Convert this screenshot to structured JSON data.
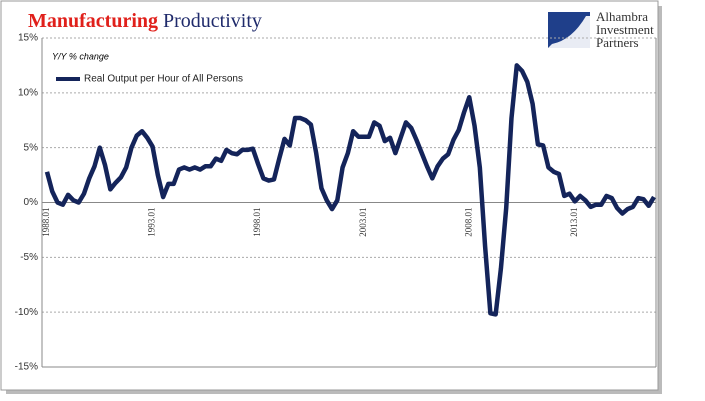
{
  "chart_data": {
    "type": "line",
    "title_parts": [
      "Manufacturing",
      "Productivity"
    ],
    "title_colors": [
      "#e0201b",
      "#1f2a6b"
    ],
    "subtitle": "Y/Y % change",
    "logo": [
      "Alhambra",
      "Investment",
      "Partners"
    ],
    "categories": [
      "1988.01",
      null,
      null,
      null,
      null,
      null,
      null,
      null,
      null,
      null,
      null,
      null,
      null,
      null,
      null,
      null,
      null,
      null,
      null,
      null,
      "1993.01",
      null,
      null,
      null,
      null,
      null,
      null,
      null,
      null,
      null,
      null,
      null,
      null,
      null,
      null,
      null,
      null,
      null,
      null,
      null,
      "1998.01",
      null,
      null,
      null,
      null,
      null,
      null,
      null,
      null,
      null,
      null,
      null,
      null,
      null,
      null,
      null,
      null,
      null,
      null,
      null,
      "2003.01",
      null,
      null,
      null,
      null,
      null,
      null,
      null,
      null,
      null,
      null,
      null,
      null,
      null,
      null,
      null,
      null,
      null,
      null,
      null,
      "2008.01",
      null,
      null,
      null,
      null,
      null,
      null,
      null,
      null,
      null,
      null,
      null,
      null,
      null,
      null,
      null,
      null,
      null,
      null,
      null,
      "2013.01",
      null,
      null,
      null,
      null,
      null,
      null,
      null,
      null,
      null,
      null,
      null,
      null,
      null,
      null,
      null
    ],
    "series": [
      {
        "name": "Real Output per Hour of All Persons",
        "color": "#14245a",
        "values": [
          2.8,
          1.0,
          0.0,
          -0.2,
          0.7,
          0.2,
          0.0,
          0.8,
          2.2,
          3.3,
          5.0,
          3.4,
          1.2,
          1.8,
          2.3,
          3.2,
          5.0,
          6.1,
          6.5,
          5.9,
          5.1,
          2.5,
          0.5,
          1.7,
          1.7,
          3.0,
          3.2,
          3.0,
          3.2,
          3.0,
          3.3,
          3.3,
          4.0,
          3.8,
          4.8,
          4.5,
          4.4,
          4.8,
          4.8,
          4.9,
          3.5,
          2.2,
          2.0,
          2.1,
          4.0,
          5.8,
          5.2,
          7.7,
          7.7,
          7.5,
          7.1,
          4.5,
          1.3,
          0.2,
          -0.6,
          0.2,
          3.2,
          4.5,
          6.5,
          6.0,
          6.0,
          6.0,
          7.3,
          7.0,
          5.6,
          5.9,
          4.5,
          5.9,
          7.3,
          6.8,
          5.7,
          4.5,
          3.3,
          2.2,
          3.3,
          4.0,
          4.4,
          5.7,
          6.6,
          8.2,
          9.6,
          7.0,
          3.2,
          -4.0,
          -10.1,
          -10.2,
          -6.0,
          -0.5,
          7.7,
          12.5,
          12.0,
          11.0,
          9.0,
          5.3,
          5.2,
          3.2,
          2.8,
          2.6,
          0.6,
          0.8,
          0.1,
          0.6,
          0.2,
          -0.4,
          -0.2,
          -0.2,
          0.6,
          0.4,
          -0.5,
          -1.0,
          -0.6,
          -0.4,
          0.4,
          0.3,
          -0.3,
          0.5
        ]
      }
    ],
    "ylim": [
      -15,
      15
    ],
    "yticks": [
      {
        "value": -15,
        "label": "-15%"
      },
      {
        "value": -10,
        "label": "-10%"
      },
      {
        "value": -5,
        "label": "-5%"
      },
      {
        "value": 0,
        "label": "0%"
      },
      {
        "value": 5,
        "label": "5%"
      },
      {
        "value": 10,
        "label": "10%"
      },
      {
        "value": 15,
        "label": "15%"
      }
    ],
    "grid": true
  }
}
